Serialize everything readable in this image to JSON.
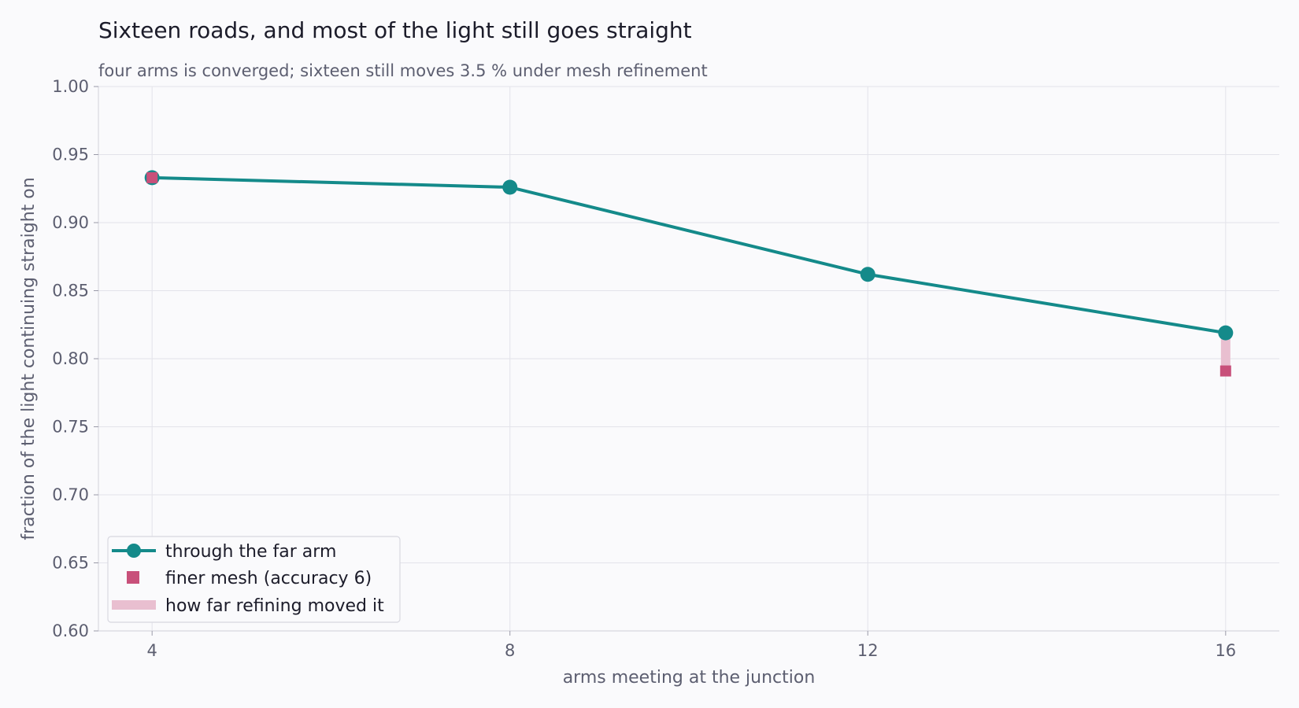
{
  "chart_data": {
    "type": "line",
    "title": "Sixteen roads, and most of the light still goes straight",
    "subtitle": "four arms is converged; sixteen still moves 3.5 % under mesh refinement",
    "xlabel": "arms meeting at the junction",
    "ylabel": "fraction of the light continuing straight on",
    "x": [
      4,
      8,
      12,
      16
    ],
    "xticks": [
      "4",
      "8",
      "12",
      "16"
    ],
    "xlim": [
      3.4,
      16.6
    ],
    "ylim": [
      0.6,
      1.0
    ],
    "yticks": [
      "0.60",
      "0.65",
      "0.70",
      "0.75",
      "0.80",
      "0.85",
      "0.90",
      "0.95",
      "1.00"
    ],
    "grid": true,
    "legend_position": "lower-left",
    "series": [
      {
        "name": "through the far arm",
        "type": "line",
        "marker": "circle",
        "color": "#148a8a",
        "x": [
          4,
          8,
          12,
          16
        ],
        "values": [
          0.933,
          0.926,
          0.862,
          0.819
        ]
      },
      {
        "name": "finer mesh (accuracy 6)",
        "type": "scatter",
        "marker": "square",
        "color": "#c8507a",
        "x": [
          4,
          16
        ],
        "values": [
          0.933,
          0.791
        ]
      },
      {
        "name": "how far refining moved it",
        "type": "range",
        "color": "#e9bfd0",
        "x": [
          16
        ],
        "from": [
          0.819
        ],
        "to": [
          0.791
        ]
      }
    ]
  }
}
